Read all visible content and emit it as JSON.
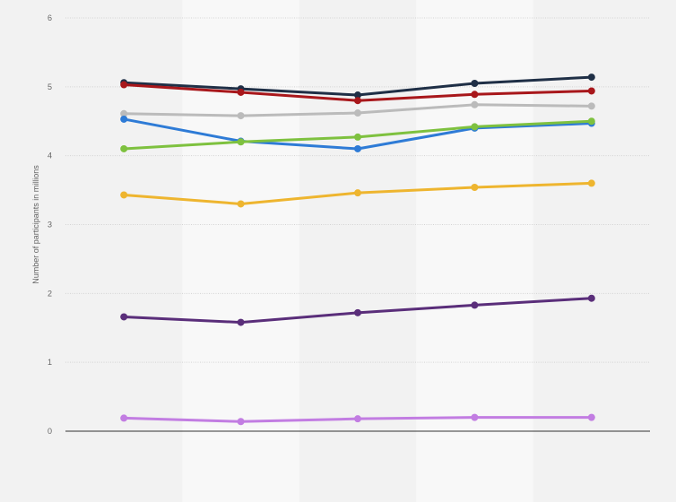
{
  "chart_data": {
    "type": "line",
    "title": "",
    "xlabel": "",
    "ylabel": "Number of participants in millions",
    "ylim": [
      0,
      6
    ],
    "yticks": [
      "0",
      "1",
      "2",
      "3",
      "4",
      "5",
      "6"
    ],
    "categories": [
      "",
      "",
      "",
      "",
      ""
    ],
    "grid": true,
    "legend": "none",
    "series": [
      {
        "color": "#1f2f46",
        "values": [
          5.06,
          4.97,
          4.88,
          5.05,
          5.14
        ]
      },
      {
        "color": "#a8171b",
        "values": [
          5.03,
          4.92,
          4.8,
          4.89,
          4.94
        ]
      },
      {
        "color": "#bbbbbb",
        "values": [
          4.61,
          4.58,
          4.62,
          4.74,
          4.72
        ]
      },
      {
        "color": "#2e7bd6",
        "values": [
          4.53,
          4.21,
          4.1,
          4.4,
          4.47
        ]
      },
      {
        "color": "#7ec13f",
        "values": [
          4.1,
          4.2,
          4.27,
          4.42,
          4.5
        ]
      },
      {
        "color": "#eeb52f",
        "values": [
          3.43,
          3.3,
          3.46,
          3.54,
          3.6
        ]
      },
      {
        "color": "#5a2e7a",
        "values": [
          1.66,
          1.58,
          1.72,
          1.83,
          1.93
        ]
      },
      {
        "color": "#c27de2",
        "values": [
          0.19,
          0.14,
          0.18,
          0.2,
          0.2
        ]
      }
    ]
  }
}
